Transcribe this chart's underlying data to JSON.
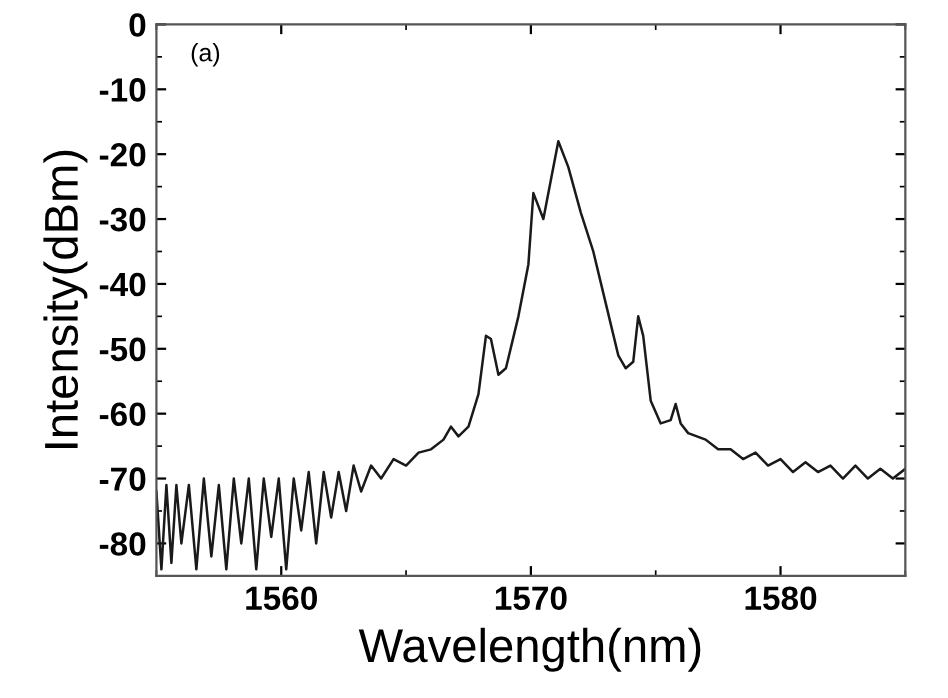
{
  "chart_data": {
    "type": "line",
    "xlabel": "Wavelength(nm)",
    "ylabel": "Intensity(dBm)",
    "annotations": [
      "(a)"
    ],
    "x": [
      1555,
      1555.2,
      1555.4,
      1555.6,
      1555.8,
      1556,
      1556.3,
      1556.6,
      1556.9,
      1557.2,
      1557.5,
      1557.8,
      1558.1,
      1558.4,
      1558.7,
      1559,
      1559.3,
      1559.6,
      1559.9,
      1560.2,
      1560.5,
      1560.8,
      1561.1,
      1561.4,
      1561.7,
      1562,
      1562.3,
      1562.6,
      1562.9,
      1563.2,
      1563.6,
      1564,
      1564.5,
      1565,
      1565.5,
      1566,
      1566.5,
      1566.8,
      1567.1,
      1567.5,
      1567.9,
      1568.2,
      1568.4,
      1568.7,
      1569,
      1569.5,
      1569.9,
      1570.1,
      1570.5,
      1571.1,
      1571.5,
      1572,
      1572.5,
      1573,
      1573.5,
      1573.8,
      1574.1,
      1574.3,
      1574.5,
      1574.8,
      1575.2,
      1575.6,
      1575.8,
      1576,
      1576.3,
      1577,
      1577.5,
      1578,
      1578.5,
      1579,
      1579.5,
      1580,
      1580.5,
      1581,
      1581.5,
      1582,
      1582.5,
      1583,
      1583.5,
      1584,
      1584.5,
      1585
    ],
    "series": [
      {
        "color": "#1a1a1a",
        "values": [
          -72,
          -84,
          -71,
          -83,
          -71,
          -80,
          -71,
          -84,
          -70,
          -82,
          -71,
          -84,
          -70,
          -80,
          -70,
          -84,
          -70,
          -79,
          -70,
          -84,
          -70,
          -78,
          -69,
          -80,
          -69,
          -76,
          -69,
          -75,
          -68,
          -72,
          -68,
          -70,
          -67,
          -68,
          -66,
          -65.5,
          -64,
          -62,
          -63.5,
          -62,
          -57,
          -48,
          -48.5,
          -54,
          -53,
          -45,
          -37,
          -26,
          -30,
          -18,
          -22,
          -29,
          -35,
          -43,
          -51,
          -53,
          -52,
          -45,
          -48,
          -58,
          -61.5,
          -61,
          -58.5,
          -61.5,
          -63,
          -64,
          -65.5,
          -65.5,
          -67,
          -66,
          -68,
          -67,
          -69,
          -67.5,
          -69,
          -68,
          -70,
          -68,
          -70,
          -68.5,
          -70,
          -68.5
        ]
      }
    ],
    "xlim": [
      1555,
      1585
    ],
    "xticks": [
      1560,
      1570,
      1580
    ],
    "ylim": [
      -85,
      0
    ],
    "yticks": [
      -80,
      -70,
      -60,
      -50,
      -40,
      -30,
      -20,
      -10,
      0
    ],
    "grid": false,
    "legend": false,
    "marker": "none",
    "line_style": "solid"
  }
}
